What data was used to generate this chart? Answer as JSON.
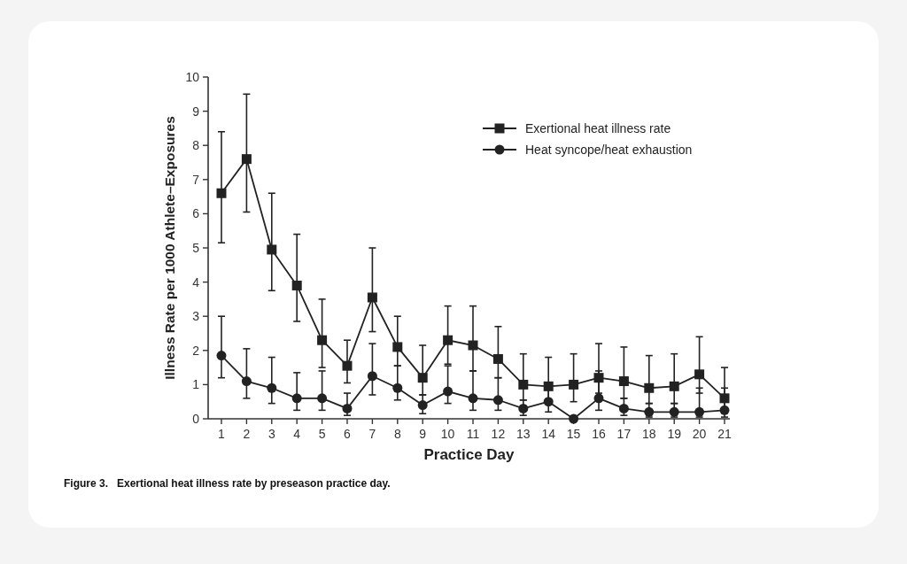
{
  "chart_data": {
    "type": "line",
    "xlabel": "Practice Day",
    "ylabel": "Illness Rate per 1000 Athlete–Exposures",
    "categories": [
      "1",
      "2",
      "3",
      "4",
      "5",
      "6",
      "7",
      "8",
      "9",
      "10",
      "11",
      "12",
      "13",
      "14",
      "15",
      "16",
      "17",
      "18",
      "19",
      "20",
      "21"
    ],
    "ylim": [
      0,
      10
    ],
    "yticks": [
      0,
      1,
      2,
      3,
      4,
      5,
      6,
      7,
      8,
      9,
      10
    ],
    "grid": false,
    "legend": "top right",
    "line_style": "solid",
    "series": [
      {
        "name": "Exertional heat illness rate",
        "color": "#222222",
        "marker": "square",
        "values": [
          6.6,
          7.6,
          4.95,
          3.9,
          2.3,
          1.55,
          3.55,
          2.1,
          1.2,
          2.3,
          2.15,
          1.75,
          1.0,
          0.95,
          1.0,
          1.2,
          1.1,
          0.9,
          0.95,
          1.3,
          0.6
        ],
        "errors": [
          [
            5.15,
            8.4
          ],
          [
            6.05,
            9.5
          ],
          [
            3.75,
            6.6
          ],
          [
            2.85,
            5.4
          ],
          [
            1.5,
            3.5
          ],
          [
            1.05,
            2.3
          ],
          [
            2.55,
            5.0
          ],
          [
            1.55,
            3.0
          ],
          [
            0.7,
            2.15
          ],
          [
            1.6,
            3.3
          ],
          [
            1.4,
            3.3
          ],
          [
            1.2,
            2.7
          ],
          [
            0.55,
            1.9
          ],
          [
            0.55,
            1.8
          ],
          [
            0.5,
            1.9
          ],
          [
            0.75,
            2.2
          ],
          [
            0.6,
            2.1
          ],
          [
            0.45,
            1.85
          ],
          [
            0.45,
            1.9
          ],
          [
            0.75,
            2.4
          ],
          [
            0.2,
            1.5
          ]
        ]
      },
      {
        "name": "Heat syncope/heat exhaustion",
        "color": "#222222",
        "marker": "circle",
        "values": [
          1.85,
          1.1,
          0.9,
          0.6,
          0.6,
          0.3,
          1.25,
          0.9,
          0.4,
          0.8,
          0.6,
          0.55,
          0.3,
          0.5,
          0,
          0.6,
          0.3,
          0.2,
          0.2,
          0.2,
          0.25
        ],
        "errors": [
          [
            1.2,
            3.0
          ],
          [
            0.6,
            2.05
          ],
          [
            0.45,
            1.8
          ],
          [
            0.25,
            1.35
          ],
          [
            0.25,
            1.4
          ],
          [
            0.1,
            0.75
          ],
          [
            0.7,
            2.2
          ],
          [
            0.55,
            1.55
          ],
          [
            0.15,
            0.7
          ],
          [
            0.45,
            1.55
          ],
          [
            0.25,
            1.4
          ],
          [
            0.25,
            1.2
          ],
          [
            0.1,
            0.55
          ],
          [
            0.2,
            0.85
          ],
          null,
          [
            0.25,
            1.4
          ],
          [
            0.1,
            0.6
          ],
          [
            0.05,
            0.45
          ],
          [
            0.05,
            0.45
          ],
          [
            0.05,
            0.9
          ],
          [
            0.05,
            0.9
          ]
        ]
      }
    ],
    "annotations": [
      "Figure 3.   Exertional heat illness rate by preseason practice day."
    ]
  }
}
